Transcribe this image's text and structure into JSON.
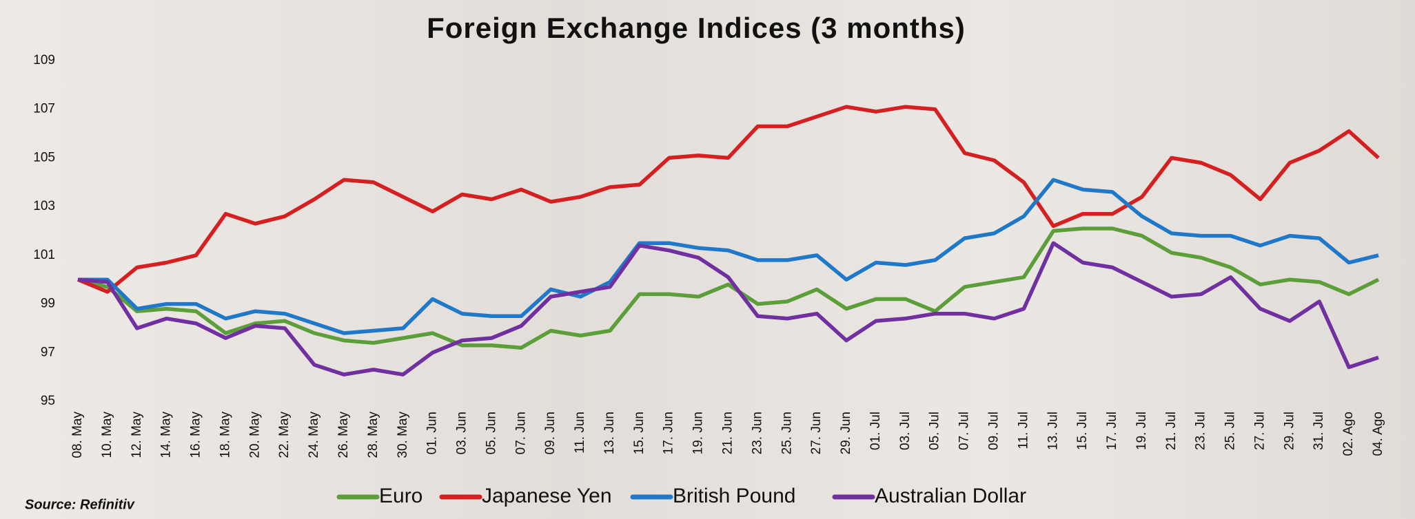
{
  "chart_data": {
    "type": "line",
    "title": "Foreign Exchange Indices (3 months)",
    "source": "Source: Refinitiv",
    "categories": [
      "08. May",
      "10. May",
      "12. May",
      "14. May",
      "16. May",
      "18. May",
      "20. May",
      "22. May",
      "24. May",
      "26. May",
      "28. May",
      "30. May",
      "01. Jun",
      "03. Jun",
      "05. Jun",
      "07. Jun",
      "09. Jun",
      "11. Jun",
      "13. Jun",
      "15. Jun",
      "17. Jun",
      "19. Jun",
      "21. Jun",
      "23. Jun",
      "25. Jun",
      "27. Jun",
      "29. Jun",
      "01. Jul",
      "03. Jul",
      "05. Jul",
      "07. Jul",
      "09. Jul",
      "11. Jul",
      "13. Jul",
      "15. Jul",
      "17. Jul",
      "19. Jul",
      "21. Jul",
      "23. Jul",
      "25. Jul",
      "27. Jul",
      "29. Jul",
      "31. Jul",
      "02. Ago",
      "04. Ago"
    ],
    "series": [
      {
        "name": "Euro",
        "color": "#5c9e3a",
        "values": [
          100,
          99.7,
          98.7,
          98.8,
          98.7,
          97.8,
          98.2,
          98.3,
          97.8,
          97.5,
          97.4,
          97.6,
          97.8,
          97.3,
          97.3,
          97.2,
          97.9,
          97.7,
          97.9,
          99.4,
          99.4,
          99.3,
          99.8,
          99.0,
          99.1,
          99.6,
          98.8,
          99.2,
          99.2,
          98.7,
          99.7,
          99.9,
          100.1,
          102.0,
          102.1,
          102.1,
          101.8,
          101.1,
          100.9,
          100.5,
          99.8,
          100.0,
          99.9,
          99.4,
          100.0
        ]
      },
      {
        "name": "Japanese Yen",
        "color": "#d42020",
        "values": [
          100,
          99.5,
          100.5,
          100.7,
          101,
          102.7,
          102.3,
          102.6,
          103.3,
          104.1,
          104,
          103.4,
          102.8,
          103.5,
          103.3,
          103.7,
          103.2,
          103.4,
          103.8,
          103.9,
          105,
          105.1,
          105,
          106.3,
          106.3,
          106.7,
          107.1,
          106.9,
          107.1,
          107,
          105.2,
          104.9,
          104,
          102.2,
          102.7,
          102.7,
          103.4,
          105,
          104.8,
          104.3,
          103.3,
          104.8,
          105.3,
          106.1,
          105
        ]
      },
      {
        "name": "British Pound",
        "color": "#1f78c8",
        "values": [
          100,
          100,
          98.8,
          99.0,
          99.0,
          98.4,
          98.7,
          98.6,
          98.2,
          97.8,
          97.9,
          98.0,
          99.2,
          98.6,
          98.5,
          98.5,
          99.6,
          99.3,
          99.9,
          101.5,
          101.5,
          101.3,
          101.2,
          100.8,
          100.8,
          101.0,
          100.0,
          100.7,
          100.6,
          100.8,
          101.7,
          101.9,
          102.6,
          104.1,
          103.7,
          103.6,
          102.6,
          101.9,
          101.8,
          101.8,
          101.4,
          101.8,
          101.7,
          100.7,
          101.0
        ]
      },
      {
        "name": "Australian Dollar",
        "color": "#7030a0",
        "values": [
          100,
          99.9,
          98.0,
          98.4,
          98.2,
          97.6,
          98.1,
          98.0,
          96.5,
          96.1,
          96.3,
          96.1,
          97.0,
          97.5,
          97.6,
          98.1,
          99.3,
          99.5,
          99.7,
          101.4,
          101.2,
          100.9,
          100.1,
          98.5,
          98.4,
          98.6,
          97.5,
          98.3,
          98.4,
          98.6,
          98.6,
          98.4,
          98.8,
          101.5,
          100.7,
          100.5,
          99.9,
          99.3,
          99.4,
          100.1,
          98.8,
          98.3,
          99.1,
          96.4,
          96.8
        ]
      }
    ],
    "ylim": [
      95,
      109
    ],
    "yticks": [
      95,
      97,
      99,
      101,
      103,
      105,
      107,
      109
    ],
    "grid": false,
    "legend": "bottom"
  }
}
